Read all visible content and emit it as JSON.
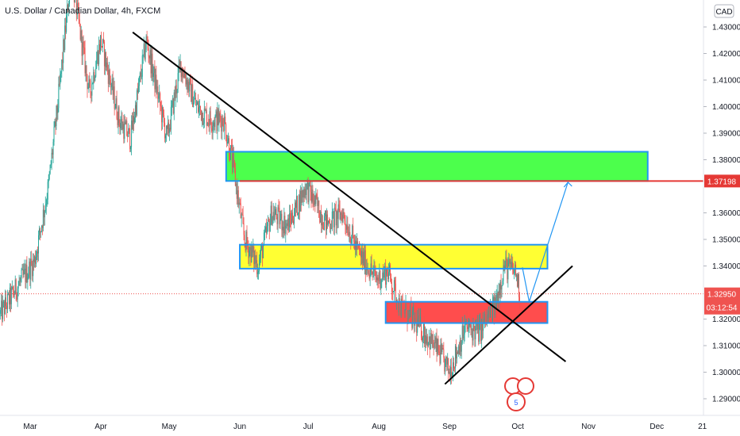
{
  "header": {
    "title": "U.S. Dollar / Canadian Dollar, 4h, FXCM"
  },
  "currency_button": {
    "label": "CAD"
  },
  "price_tags": {
    "target": "1.37198",
    "current": "1.32950",
    "countdown": "03:12:54"
  },
  "colors": {
    "up": "#26a69a",
    "down": "#ef5350",
    "green_zone": "#4cff4c",
    "yellow_zone": "#ffff33",
    "red_zone": "#ff4d4d",
    "zone_border": "#2196f3",
    "target_line": "#e53935",
    "current_tag": "#ef5350",
    "trendline": "#000000",
    "projection": "#2196f3"
  },
  "chart_data": {
    "type": "candlestick",
    "title": "U.S. Dollar / Canadian Dollar, 4h, FXCM",
    "y_axis": {
      "ticks": [
        "1.43000",
        "1.42000",
        "1.41000",
        "1.40000",
        "1.39000",
        "1.38000",
        "1.36000",
        "1.35000",
        "1.34000",
        "1.32000",
        "1.31000",
        "1.30000",
        "1.29000"
      ],
      "range": [
        1.285,
        1.435
      ],
      "position": "right"
    },
    "x_axis": {
      "ticks": [
        "Mar",
        "Apr",
        "May",
        "Jun",
        "Jul",
        "Aug",
        "Sep",
        "Oct",
        "Nov",
        "Dec",
        "21"
      ]
    },
    "path_anchors": [
      {
        "date": "2020-02-17",
        "price": 1.322
      },
      {
        "date": "2020-02-25",
        "price": 1.333
      },
      {
        "date": "2020-03-03",
        "price": 1.342
      },
      {
        "date": "2020-03-09",
        "price": 1.37
      },
      {
        "date": "2020-03-13",
        "price": 1.4
      },
      {
        "date": "2020-03-19",
        "price": 1.45
      },
      {
        "date": "2020-03-27",
        "price": 1.405
      },
      {
        "date": "2020-04-01",
        "price": 1.425
      },
      {
        "date": "2020-04-09",
        "price": 1.395
      },
      {
        "date": "2020-04-14",
        "price": 1.388
      },
      {
        "date": "2020-04-21",
        "price": 1.425
      },
      {
        "date": "2020-04-30",
        "price": 1.388
      },
      {
        "date": "2020-05-06",
        "price": 1.416
      },
      {
        "date": "2020-05-13",
        "price": 1.4
      },
      {
        "date": "2020-05-19",
        "price": 1.395
      },
      {
        "date": "2020-05-25",
        "price": 1.395
      },
      {
        "date": "2020-05-29",
        "price": 1.378
      },
      {
        "date": "2020-06-03",
        "price": 1.35
      },
      {
        "date": "2020-06-09",
        "price": 1.34
      },
      {
        "date": "2020-06-15",
        "price": 1.36
      },
      {
        "date": "2020-06-22",
        "price": 1.355
      },
      {
        "date": "2020-06-30",
        "price": 1.37
      },
      {
        "date": "2020-07-09",
        "price": 1.356
      },
      {
        "date": "2020-07-16",
        "price": 1.36
      },
      {
        "date": "2020-07-23",
        "price": 1.345
      },
      {
        "date": "2020-07-31",
        "price": 1.335
      },
      {
        "date": "2020-08-05",
        "price": 1.338
      },
      {
        "date": "2020-08-10",
        "price": 1.325
      },
      {
        "date": "2020-08-19",
        "price": 1.317
      },
      {
        "date": "2020-08-27",
        "price": 1.308
      },
      {
        "date": "2020-09-01",
        "price": 1.3
      },
      {
        "date": "2020-09-08",
        "price": 1.317
      },
      {
        "date": "2020-09-14",
        "price": 1.315
      },
      {
        "date": "2020-09-21",
        "price": 1.325
      },
      {
        "date": "2020-09-25",
        "price": 1.34
      },
      {
        "date": "2020-09-30",
        "price": 1.338
      },
      {
        "date": "2020-10-02",
        "price": 1.3295
      }
    ],
    "annotations": {
      "zones": [
        {
          "name": "green",
          "from": "2020-05-26",
          "to": "2020-11-27",
          "top": 1.383,
          "bottom": 1.372
        },
        {
          "name": "yellow",
          "from": "2020-06-01",
          "to": "2020-10-14",
          "top": 1.348,
          "bottom": 1.339
        },
        {
          "name": "red",
          "from": "2020-08-04",
          "to": "2020-10-14",
          "top": 1.3265,
          "bottom": 1.3185
        }
      ],
      "target_level": 1.37198,
      "current_level": 1.3295,
      "trendlines": [
        {
          "from": {
            "date": "2020-04-15",
            "price": 1.428
          },
          "to": {
            "date": "2020-10-22",
            "price": 1.304
          }
        },
        {
          "from": {
            "date": "2020-08-30",
            "price": 1.2955
          },
          "to": {
            "date": "2020-10-25",
            "price": 1.34
          }
        }
      ],
      "projection": [
        {
          "date": "2020-10-03",
          "price": 1.3395
        },
        {
          "date": "2020-10-06",
          "price": 1.3265
        },
        {
          "date": "2020-10-23",
          "price": 1.3715
        }
      ]
    }
  }
}
